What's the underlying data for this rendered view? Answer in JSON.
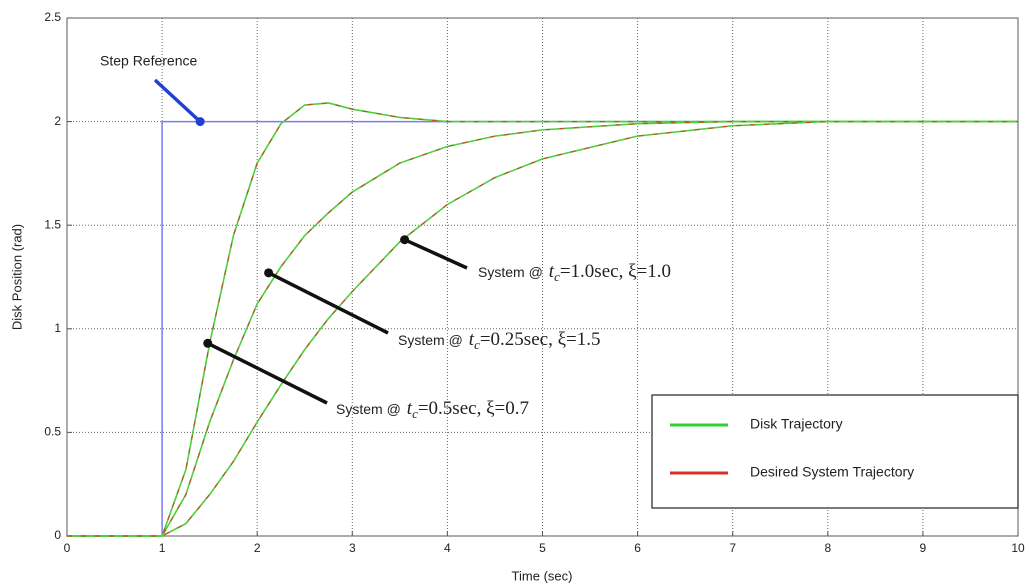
{
  "chart_data": {
    "type": "line",
    "xlabel": "Time (sec)",
    "ylabel": "Disk Position (rad)",
    "x": [
      0,
      1,
      1.25,
      1.5,
      1.75,
      2,
      2.25,
      2.5,
      2.75,
      3,
      3.5,
      4,
      4.5,
      5,
      6,
      7,
      8,
      9,
      10
    ],
    "series": [
      {
        "color": "#4cd13a",
        "overlay_color": "#d9302a",
        "values": [
          0,
          0,
          0.32,
          0.93,
          1.45,
          1.8,
          1.99,
          2.08,
          2.09,
          2.06,
          2.02,
          2.0,
          2.0,
          2.0,
          2.0,
          2.0,
          2.0,
          2.0,
          2.0
        ]
      },
      {
        "color": "#4cd13a",
        "overlay_color": "#d9302a",
        "values": [
          0,
          0,
          0.2,
          0.55,
          0.85,
          1.12,
          1.3,
          1.45,
          1.56,
          1.66,
          1.8,
          1.88,
          1.93,
          1.96,
          1.99,
          2.0,
          2.0,
          2.0,
          2.0
        ]
      },
      {
        "color": "#4cd13a",
        "overlay_color": "#d9302a",
        "values": [
          0,
          0,
          0.06,
          0.2,
          0.36,
          0.55,
          0.73,
          0.9,
          1.05,
          1.18,
          1.42,
          1.6,
          1.73,
          1.82,
          1.93,
          1.98,
          2.0,
          2.0,
          2.0
        ]
      }
    ],
    "reference": {
      "color": "#7b7bf0",
      "x": [
        0,
        1,
        1,
        10
      ],
      "values": [
        0,
        0,
        2,
        2
      ]
    },
    "legend": [
      {
        "name": "Disk Trajectory",
        "color": "#2fd12f"
      },
      {
        "name": "Desired System Trajectory",
        "color": "#d9302a"
      }
    ],
    "annotations": [
      {
        "text": "Step Reference",
        "at": {
          "x": 1.4,
          "y": 2
        }
      },
      {
        "prefix": "System @",
        "var": "t",
        "sub": "c",
        "rest": "=1.0sec,  ξ=1.0",
        "at": {
          "x": 3.55,
          "y": 1.43
        }
      },
      {
        "prefix": "System @",
        "var": "t",
        "sub": "c",
        "rest": "=0.25sec,  ξ=1.5",
        "at": {
          "x": 2.12,
          "y": 1.27
        }
      },
      {
        "prefix": "System @",
        "var": "t",
        "sub": "c",
        "rest": "=0.5sec,  ξ=0.7",
        "at": {
          "x": 1.48,
          "y": 0.93
        }
      }
    ],
    "xlim": [
      0,
      10
    ],
    "ylim": [
      0,
      2.5
    ],
    "xticks": [
      0,
      1,
      2,
      3,
      4,
      5,
      6,
      7,
      8,
      9,
      10
    ],
    "yticks": [
      0,
      0.5,
      1,
      1.5,
      2,
      2.5
    ],
    "grid": true
  }
}
